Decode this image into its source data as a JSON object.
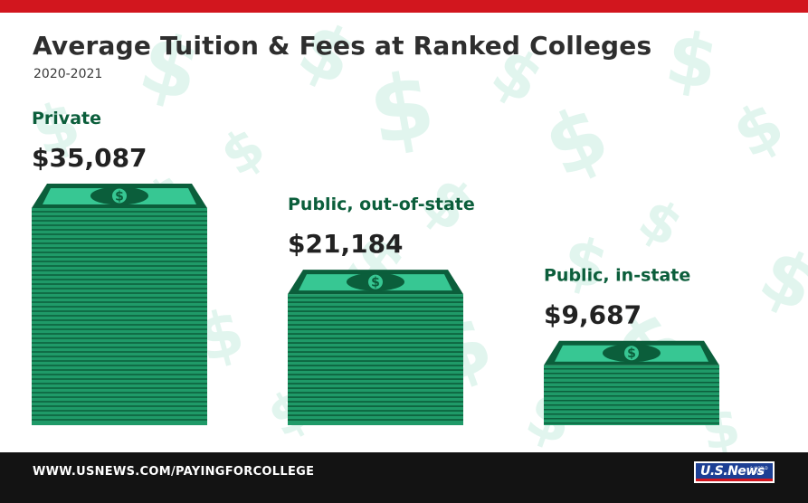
{
  "header": {
    "title": "Average Tuition & Fees at Ranked Colleges",
    "subtitle": "2020-2021"
  },
  "chart_data": {
    "type": "bar",
    "title": "Average Tuition & Fees at Ranked Colleges",
    "subtitle": "2020-2021",
    "categories": [
      "Private",
      "Public, out-of-state",
      "Public, in-state"
    ],
    "values": [
      35087,
      21184,
      9687
    ],
    "value_labels": [
      "$35,087",
      "$21,184",
      "$9,687"
    ],
    "ylim": [
      0,
      35087
    ],
    "xlabel": "",
    "ylabel": "",
    "grid": false,
    "legend": "none"
  },
  "footer": {
    "url": "WWW.USNEWS.COM/PAYINGFORCOLLEGE",
    "logo_text": "U.S.News",
    "logo_small": "& WORLD REPORT"
  },
  "colors": {
    "accent_red": "#d2161e",
    "green_dark": "#0b5e3b",
    "green_stack": "#1f9a68",
    "green_bill": "#37c793",
    "pattern": "#e1f5ee",
    "footer_bg": "#131313"
  }
}
